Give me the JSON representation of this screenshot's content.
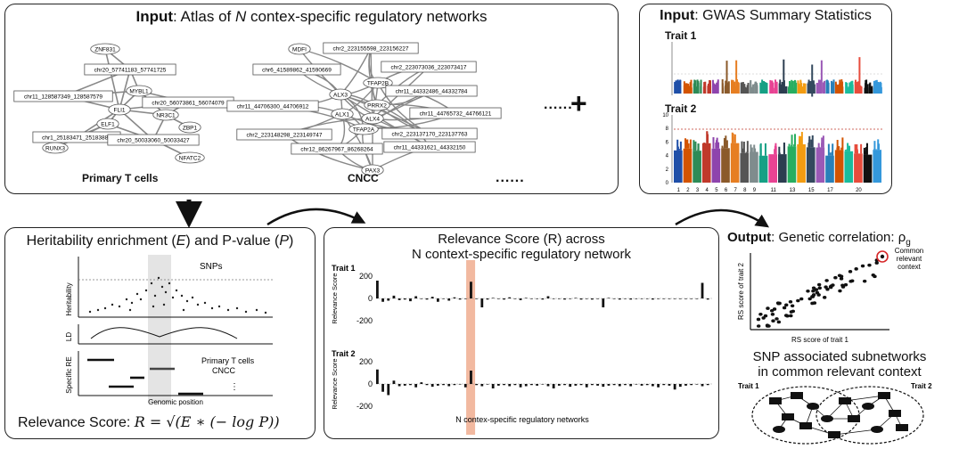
{
  "panel_atlas": {
    "title_bold": "Input",
    "title_rest": ": Atlas of ",
    "title_var": "N",
    "title_tail": " contex-specific regulatory networks",
    "net1_label": "Primary T cells",
    "net2_label": "CNCC",
    "ellipsis": "......",
    "net1_nodes": [
      "ZNF831",
      "chr20_57741183_57741725",
      "MYBL1",
      "chr11_128587349_128587579",
      "FLI1",
      "NR3C1",
      "chr20_56073861_56074079",
      "ELF1",
      "ZBP1",
      "chr1_25183471_25183886",
      "chr20_50033060_50033427",
      "RUNX3",
      "NFATC2"
    ],
    "net2_nodes": [
      "MDFI",
      "chr2_223155598_223156227",
      "chr6_41589862_41590669",
      "chr2_223073036_223073417",
      "ALX3",
      "TFAP2B",
      "chr11_44332486_44332784",
      "chr11_44706300_44706912",
      "ALX1",
      "PRRX2",
      "ALX4",
      "chr11_44765732_44766121",
      "chr2_223148298_223149747",
      "TFAP2A",
      "chr2_223137170_223137763",
      "chr12_86267967_86268264",
      "chr11_44331621_44332150",
      "PAX3"
    ]
  },
  "plus": "+",
  "panel_gwas": {
    "title_bold": "Input",
    "title_rest": ": GWAS Summary Statistics",
    "trait1": "Trait 1",
    "trait2": "Trait 2",
    "yticks2": [
      "10",
      "8",
      "6",
      "4",
      "2",
      "0"
    ],
    "xticks2": [
      "1",
      "2",
      "3",
      "4",
      "5",
      "6",
      "7",
      "8",
      "9",
      "11",
      "13",
      "15",
      "17",
      "20"
    ]
  },
  "panel_heritability": {
    "title_a": "Heritability enrichment (",
    "title_e": "E",
    "title_b": ") and P-value (",
    "title_p": "P",
    "title_c": ")",
    "snps": "SNPs",
    "ylabel_herit": "Heritability",
    "ylabel_ld": "LD",
    "ylabel_re": "Specific RE",
    "ctx1": "Primary T cells",
    "ctx2": "CNCC",
    "xlabel": "Genomic position",
    "dots": "⋮",
    "formula_prefix": "Relevance Score: ",
    "formula": "R = √(E ∗ (− log P))"
  },
  "panel_relevance": {
    "title_line1": "Relevance Score (R) across",
    "title_line2": "N context-specific regulatory network",
    "trait1": "Trait 1",
    "trait2": "Trait 2",
    "ylabel": "Relevance Score",
    "yticks": [
      "200",
      "0",
      "-200"
    ],
    "xlabel": "N contex-specific regulatory networks"
  },
  "panel_output": {
    "title_bold": "Output",
    "title_rest": ": Genetic correlation: ρ",
    "title_sub": "g",
    "callout": [
      "Common",
      "relevant",
      "context"
    ],
    "xlabel": "RS score of trait 1",
    "ylabel": "RS score of trait 2",
    "subnet_title1": "SNP associated subnetworks",
    "subnet_title2": "in common relevant context",
    "trait1": "Trait 1",
    "trait2": "Trait 2"
  },
  "colors": {
    "highlight": "#f2b9a0",
    "gray_band": "#e4e4e4",
    "threshold": "#c0392b"
  },
  "chart_data": [
    {
      "type": "bar",
      "title": "Relevance Score (R) across N context-specific regulatory network",
      "xlabel": "N contex-specific regulatory networks",
      "ylabel": "Relevance Score",
      "ylim": [
        -200,
        200
      ],
      "series": [
        {
          "name": "Trait 1",
          "values": [
            160,
            -30,
            -20,
            25,
            -15,
            -10,
            -25,
            20,
            -5,
            -10,
            15,
            -30,
            -5,
            -20,
            10,
            -10,
            -5,
            150,
            -5,
            -80,
            -10,
            5,
            -5,
            -10,
            10,
            -5,
            -15,
            5,
            -5,
            -5,
            -10,
            20,
            -5,
            -5,
            -10,
            -5,
            5,
            -10,
            -5,
            -10,
            -5,
            -80,
            5,
            -5,
            -10,
            -5,
            -10,
            -5,
            -5,
            -5,
            -10,
            -5,
            -5,
            -5,
            -5,
            -5,
            -5,
            -5,
            -5,
            140,
            -10
          ]
        },
        {
          "name": "Trait 2",
          "values": [
            130,
            -70,
            -100,
            30,
            -20,
            -15,
            -10,
            -30,
            15,
            -10,
            -25,
            -15,
            -10,
            -20,
            -10,
            -5,
            -30,
            120,
            -10,
            -20,
            -5,
            -40,
            -15,
            -10,
            -20,
            -10,
            -30,
            -20,
            -10,
            -15,
            -5,
            -20,
            -40,
            -15,
            -10,
            -25,
            -15,
            -10,
            -30,
            -10,
            -15,
            -25,
            -15,
            -10,
            -20,
            -10,
            -20,
            -5,
            -15,
            -10,
            -20,
            -30,
            -10,
            -15,
            -50,
            -25,
            -15,
            -10,
            -5,
            -20,
            -10
          ]
        }
      ]
    },
    {
      "type": "scatter",
      "xlabel": "RS score of trait 1",
      "ylabel": "RS score of trait 2"
    }
  ]
}
